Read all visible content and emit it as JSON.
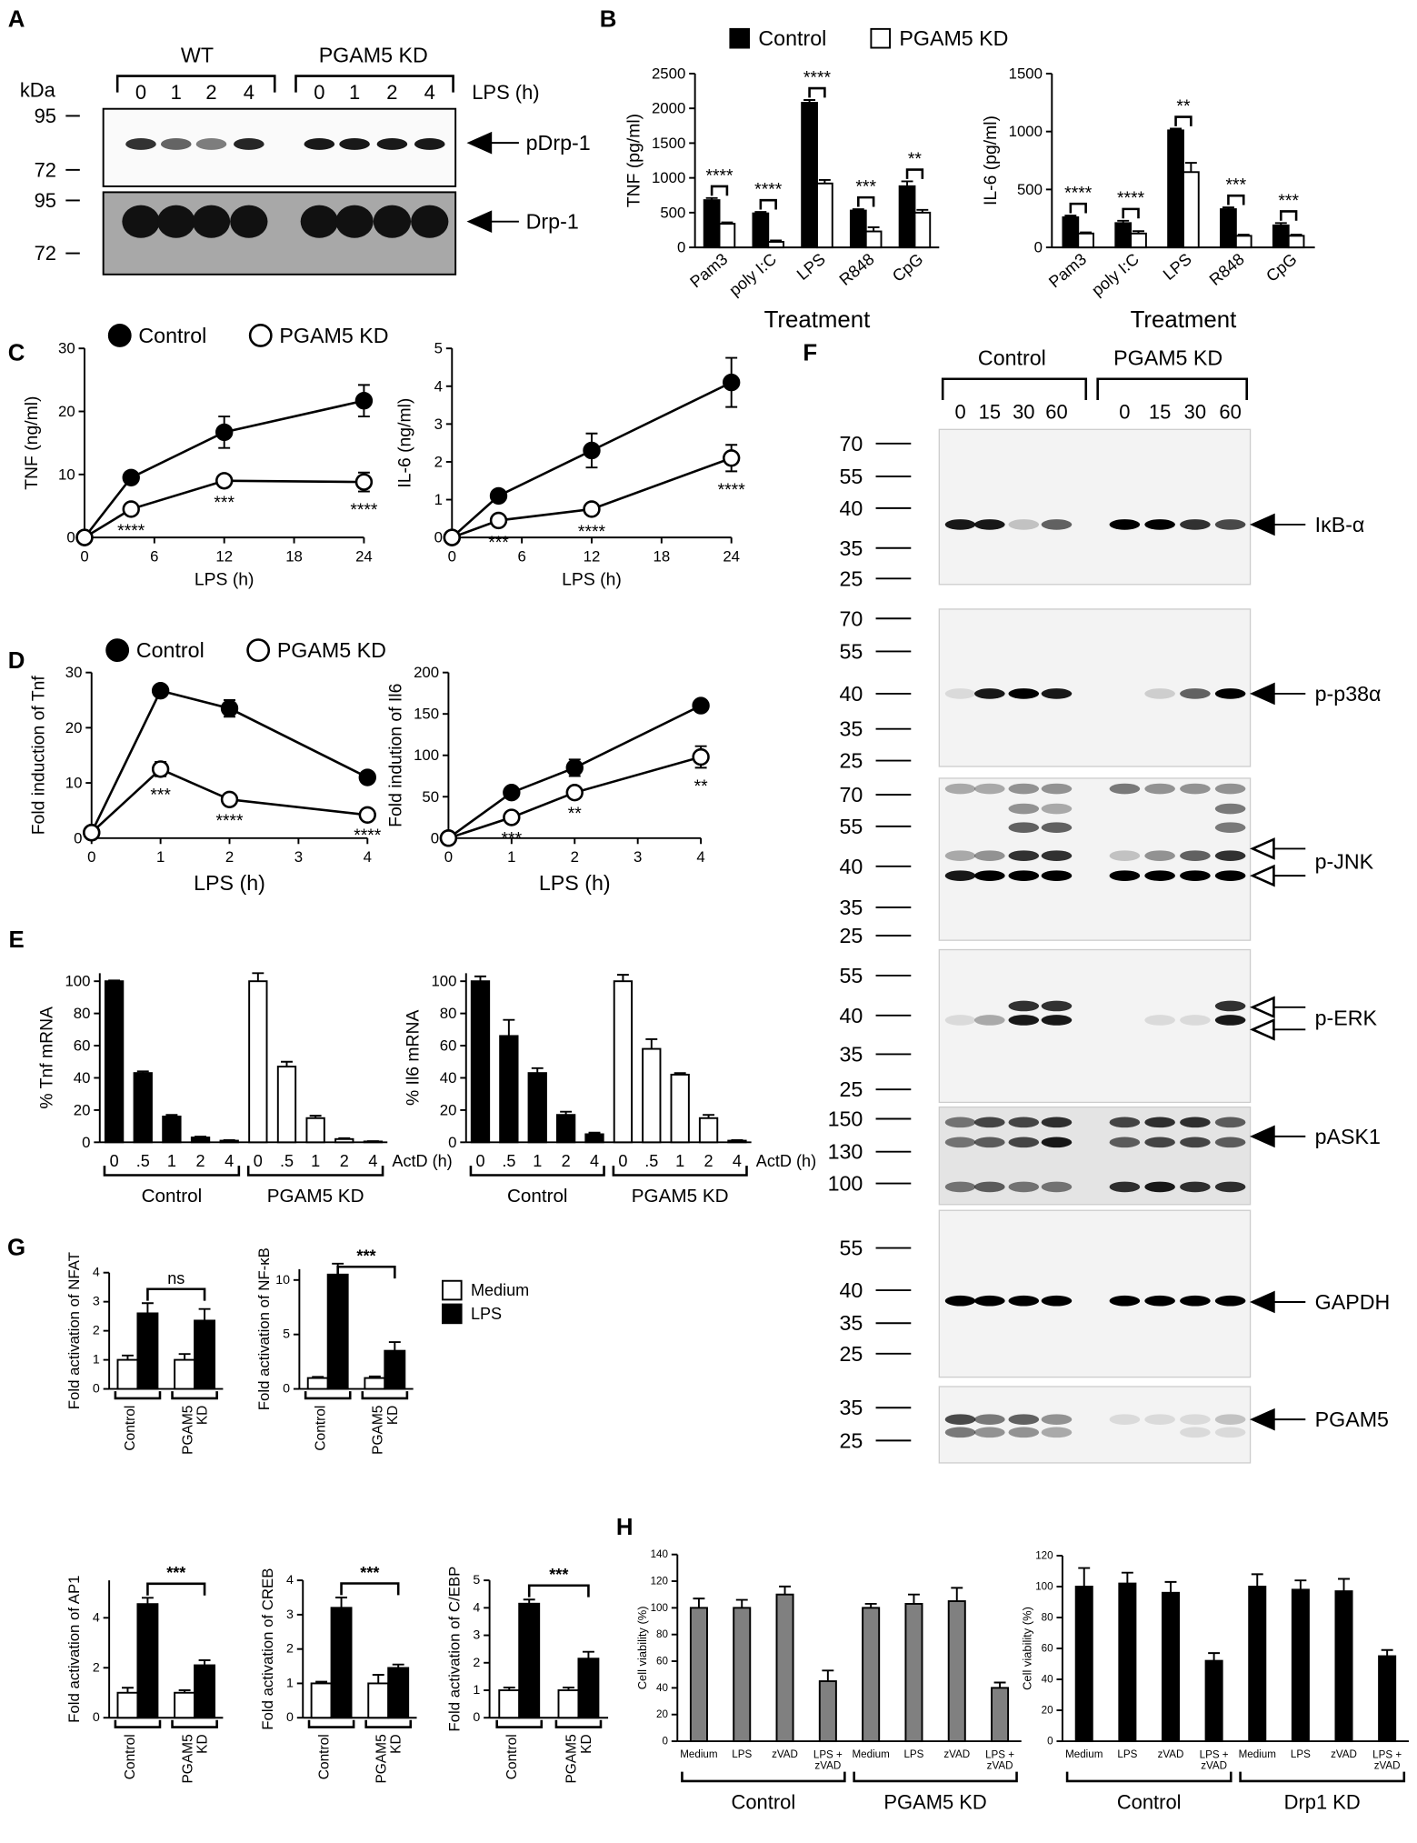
{
  "panel_labels": [
    "A",
    "B",
    "C",
    "D",
    "E",
    "F",
    "G",
    "H"
  ],
  "blot_a": {
    "unit": "kDa",
    "groups": [
      "WT",
      "PGAM5 KD"
    ],
    "lanes": [
      "0",
      "1",
      "2",
      "4"
    ],
    "treatment": "LPS (h)",
    "markers": [
      "95",
      "72",
      "95",
      "72"
    ],
    "bands": [
      "pDrp-1",
      "Drp-1"
    ]
  },
  "blot_f": {
    "groups": [
      "Control",
      "PGAM5 KD"
    ],
    "lanes": [
      "0",
      "15",
      "30",
      "60"
    ],
    "panels": [
      {
        "markers": [
          "70",
          "55",
          "40",
          "35",
          "25"
        ],
        "label": "IκB-α"
      },
      {
        "markers": [
          "70",
          "55",
          "40",
          "35",
          "25"
        ],
        "label": "p-p38α"
      },
      {
        "markers": [
          "70",
          "55",
          "40",
          "35",
          "25"
        ],
        "label": "p-JNK"
      },
      {
        "markers": [
          "55",
          "40",
          "35",
          "25"
        ],
        "label": "p-ERK"
      },
      {
        "markers": [
          "150",
          "130",
          "100"
        ],
        "label": "pASK1"
      },
      {
        "markers": [
          "55",
          "40",
          "35",
          "25"
        ],
        "label": "GAPDH"
      },
      {
        "markers": [
          "35",
          "25"
        ],
        "label": "PGAM5"
      }
    ]
  },
  "chart_data": [
    {
      "type": "bar",
      "bar_mode": "grouped",
      "ylabel": "TNF (pg/ml)",
      "xlabel": "Treatment",
      "categories": [
        "Pam3",
        "poly I:C",
        "LPS",
        "R848",
        "CpG"
      ],
      "series": [
        {
          "name": "Control",
          "color": "#000000",
          "values": [
            680,
            490,
            2080,
            530,
            880
          ],
          "errors": [
            30,
            20,
            40,
            20,
            70
          ]
        },
        {
          "name": "PGAM5 KD",
          "color": "#ffffff",
          "values": [
            340,
            80,
            920,
            230,
            500
          ],
          "errors": [
            20,
            20,
            50,
            60,
            40
          ]
        }
      ],
      "significance": [
        "****",
        "****",
        "****",
        "***",
        "**"
      ],
      "ylim": [
        0,
        2500
      ],
      "yticks": [
        0,
        500,
        1000,
        1500,
        2000,
        2500
      ]
    },
    {
      "type": "bar",
      "bar_mode": "grouped",
      "ylabel": "IL-6 (pg/ml)",
      "xlabel": "Treatment",
      "categories": [
        "Pam3",
        "poly I:C",
        "LPS",
        "R848",
        "CpG"
      ],
      "series": [
        {
          "color": "#000000",
          "values": [
            260,
            210,
            1010,
            330,
            190
          ],
          "errors": [
            15,
            20,
            15,
            15,
            20
          ]
        },
        {
          "color": "#ffffff",
          "values": [
            120,
            120,
            650,
            100,
            100
          ],
          "errors": [
            10,
            20,
            80,
            10,
            10
          ]
        }
      ],
      "significance": [
        "****",
        "****",
        "**",
        "***",
        "***"
      ],
      "ylim": [
        0,
        1500
      ],
      "yticks": [
        0,
        500,
        1000,
        1500
      ]
    },
    {
      "type": "line",
      "ylabel": "TNF (ng/ml)",
      "xlabel": "LPS (h)",
      "x": [
        0,
        4,
        12,
        24
      ],
      "series": [
        {
          "name": "Control",
          "color": "#000000",
          "values": [
            0,
            9.5,
            16.7,
            21.7
          ],
          "errors": [
            0,
            0.5,
            2.5,
            2.5
          ]
        },
        {
          "name": "PGAM5 KD",
          "color": "#ffffff",
          "values": [
            0,
            4.5,
            9,
            8.8
          ],
          "errors": [
            0,
            0.5,
            0.5,
            1.5
          ]
        }
      ],
      "significance": [
        null,
        "****",
        "***",
        "****"
      ],
      "xlim": [
        0,
        24
      ],
      "xticks": [
        0,
        6,
        12,
        18,
        24
      ],
      "ylim": [
        0,
        30
      ],
      "yticks": [
        0,
        10,
        20,
        30
      ]
    },
    {
      "type": "line",
      "ylabel": "IL-6 (ng/ml)",
      "xlabel": "LPS (h)",
      "x": [
        0,
        4,
        12,
        24
      ],
      "series": [
        {
          "color": "#000000",
          "values": [
            0,
            1.1,
            2.3,
            4.1
          ],
          "errors": [
            0,
            0.1,
            0.45,
            0.65
          ]
        },
        {
          "color": "#ffffff",
          "values": [
            0,
            0.45,
            0.75,
            2.1
          ],
          "errors": [
            0,
            0.1,
            0.1,
            0.35
          ]
        }
      ],
      "significance": [
        null,
        "***",
        "****",
        "****"
      ],
      "xlim": [
        0,
        24
      ],
      "xticks": [
        0,
        6,
        12,
        18,
        24
      ],
      "ylim": [
        0,
        5
      ],
      "yticks": [
        0,
        1,
        2,
        3,
        4,
        5
      ]
    },
    {
      "type": "line",
      "ylabel": "Fold induction of Tnf",
      "xlabel": "LPS (h)",
      "x": [
        0,
        1,
        2,
        4
      ],
      "series": [
        {
          "name": "Control",
          "color": "#000000",
          "values": [
            1,
            26.7,
            23.5,
            11
          ],
          "errors": [
            0,
            0.8,
            1.5,
            0.3
          ]
        },
        {
          "name": "PGAM5 KD",
          "color": "#ffffff",
          "values": [
            1,
            12.5,
            7,
            4.2
          ],
          "errors": [
            0,
            1.3,
            0.5,
            0.3
          ]
        }
      ],
      "significance": [
        null,
        "***",
        "****",
        "****"
      ],
      "xlim": [
        0,
        4
      ],
      "xticks": [
        0,
        1,
        2,
        3,
        4
      ],
      "ylim": [
        0,
        30
      ],
      "yticks": [
        0,
        10,
        20,
        30
      ]
    },
    {
      "type": "line",
      "ylabel": "Fold indution of Il6",
      "xlabel": "LPS (h)",
      "x": [
        0,
        1,
        2,
        4
      ],
      "series": [
        {
          "color": "#000000",
          "values": [
            0,
            55,
            85,
            160
          ],
          "errors": [
            0,
            3,
            10,
            5
          ]
        },
        {
          "color": "#ffffff",
          "values": [
            0,
            25,
            55,
            98
          ],
          "errors": [
            0,
            3,
            3,
            13
          ]
        }
      ],
      "significance": [
        null,
        "***",
        "**",
        "**"
      ],
      "xlim": [
        0,
        4
      ],
      "xticks": [
        0,
        1,
        2,
        3,
        4
      ],
      "ylim": [
        0,
        200
      ],
      "yticks": [
        0,
        50,
        100,
        150,
        200
      ]
    },
    {
      "type": "bar",
      "bar_mode": "blocks",
      "ylabel": "% Tnf mRNA",
      "xlabel": "ActD (h)",
      "categories": [
        "0",
        ".5",
        "1",
        "2",
        "4"
      ],
      "series": [
        {
          "name": "Control",
          "color": "#000000",
          "values": [
            100,
            43,
            16,
            3,
            1
          ],
          "errors": [
            0.5,
            1,
            1,
            0.5,
            0.3
          ]
        },
        {
          "name": "PGAM5 KD",
          "color": "#ffffff",
          "values": [
            100,
            47,
            15,
            2,
            0.5
          ],
          "errors": [
            5,
            3,
            1.5,
            0.5,
            0.2
          ]
        }
      ],
      "ylim": [
        0,
        105
      ],
      "yticks": [
        0,
        20,
        40,
        60,
        80,
        100
      ]
    },
    {
      "type": "bar",
      "bar_mode": "blocks",
      "ylabel": "% Il6 mRNA",
      "xlabel": "ActD (h)",
      "categories": [
        "0",
        ".5",
        "1",
        "2",
        "4"
      ],
      "series": [
        {
          "name": "Control",
          "color": "#000000",
          "values": [
            100,
            66,
            43,
            17,
            5
          ],
          "errors": [
            3,
            10,
            3,
            2,
            1
          ]
        },
        {
          "name": "PGAM5 KD",
          "color": "#ffffff",
          "values": [
            100,
            58,
            42,
            15,
            1
          ],
          "errors": [
            4,
            6,
            1,
            2,
            0.3
          ]
        }
      ],
      "ylim": [
        0,
        105
      ],
      "yticks": [
        0,
        20,
        40,
        60,
        80,
        100
      ]
    },
    {
      "type": "bar",
      "bar_mode": "grouped",
      "ylabel": "Fold activation of NFAT",
      "categories": [
        "Control",
        "PGAM5\nKD"
      ],
      "series": [
        {
          "color": "#ffffff",
          "values": [
            1.0,
            1.0
          ],
          "errors": [
            0.15,
            0.2
          ]
        },
        {
          "color": "#000000",
          "values": [
            2.6,
            2.35
          ],
          "errors": [
            0.35,
            0.4
          ]
        }
      ],
      "significance": "ns",
      "ylim": [
        0,
        4
      ],
      "yticks": [
        0,
        1,
        2,
        3,
        4
      ]
    },
    {
      "type": "bar",
      "bar_mode": "grouped",
      "ylabel": "Fold activation of NF-κB",
      "categories": [
        "Control",
        "PGAM5\nKD"
      ],
      "series": [
        {
          "name": "Medium",
          "color": "#ffffff",
          "values": [
            1.0,
            1.0
          ],
          "errors": [
            0.1,
            0.15
          ]
        },
        {
          "name": "LPS",
          "color": "#000000",
          "values": [
            10.5,
            3.5
          ],
          "errors": [
            1.0,
            0.8
          ]
        }
      ],
      "significance": "***",
      "ylim": [
        0,
        11
      ],
      "yticks": [
        0,
        5,
        10
      ]
    },
    {
      "type": "bar",
      "bar_mode": "grouped",
      "ylabel": "Fold activation of AP1",
      "categories": [
        "Control",
        "PGAM5\nKD"
      ],
      "series": [
        {
          "color": "#ffffff",
          "values": [
            1.0,
            1.0
          ],
          "errors": [
            0.2,
            0.1
          ]
        },
        {
          "color": "#000000",
          "values": [
            4.55,
            2.1
          ],
          "errors": [
            0.25,
            0.2
          ]
        }
      ],
      "significance": "***",
      "ylim": [
        0,
        5.5
      ],
      "yticks": [
        0,
        2,
        4
      ]
    },
    {
      "type": "bar",
      "bar_mode": "grouped",
      "ylabel": "Fold activation of CREB",
      "categories": [
        "Control",
        "PGAM5\nKD"
      ],
      "series": [
        {
          "color": "#ffffff",
          "values": [
            1.0,
            1.0
          ],
          "errors": [
            0.05,
            0.25
          ]
        },
        {
          "color": "#000000",
          "values": [
            3.2,
            1.45
          ],
          "errors": [
            0.3,
            0.1
          ]
        }
      ],
      "significance": "***",
      "ylim": [
        0,
        4
      ],
      "yticks": [
        0,
        1,
        2,
        3,
        4
      ]
    },
    {
      "type": "bar",
      "bar_mode": "grouped",
      "ylabel": "Fold activation of C/EBP",
      "categories": [
        "Control",
        "PGAM5\nKD"
      ],
      "series": [
        {
          "color": "#ffffff",
          "values": [
            1.0,
            1.0
          ],
          "errors": [
            0.1,
            0.1
          ]
        },
        {
          "color": "#000000",
          "values": [
            4.15,
            2.15
          ],
          "errors": [
            0.15,
            0.25
          ]
        }
      ],
      "significance": "***",
      "ylim": [
        0,
        5
      ],
      "yticks": [
        0,
        1,
        2,
        3,
        4,
        5
      ]
    },
    {
      "type": "bar",
      "bar_mode": "blocks",
      "ylabel": "Cell viability (%)",
      "categories": [
        "Medium",
        "LPS",
        "zVAD",
        "LPS +\nzVAD"
      ],
      "series": [
        {
          "name": "Control",
          "color": "#808080",
          "values": [
            100,
            100,
            110,
            45
          ],
          "errors": [
            7,
            6,
            6,
            8
          ]
        },
        {
          "name": "PGAM5 KD",
          "color": "#808080",
          "values": [
            100,
            103,
            105,
            40
          ],
          "errors": [
            3,
            7,
            10,
            4
          ]
        }
      ],
      "ylim": [
        0,
        140
      ],
      "yticks": [
        0,
        20,
        40,
        60,
        80,
        100,
        120,
        140
      ]
    },
    {
      "type": "bar",
      "bar_mode": "blocks",
      "ylabel": "Cell viability (%)",
      "categories": [
        "Medium",
        "LPS",
        "zVAD",
        "LPS +\nzVAD"
      ],
      "series": [
        {
          "name": "Control",
          "color": "#000000",
          "values": [
            100,
            102,
            96,
            52
          ],
          "errors": [
            12,
            7,
            7,
            5
          ]
        },
        {
          "name": "Drp1 KD",
          "color": "#000000",
          "values": [
            100,
            98,
            97,
            55
          ],
          "errors": [
            8,
            6,
            8,
            4
          ]
        }
      ],
      "ylim": [
        0,
        120
      ],
      "yticks": [
        0,
        20,
        40,
        60,
        80,
        100,
        120
      ]
    }
  ]
}
